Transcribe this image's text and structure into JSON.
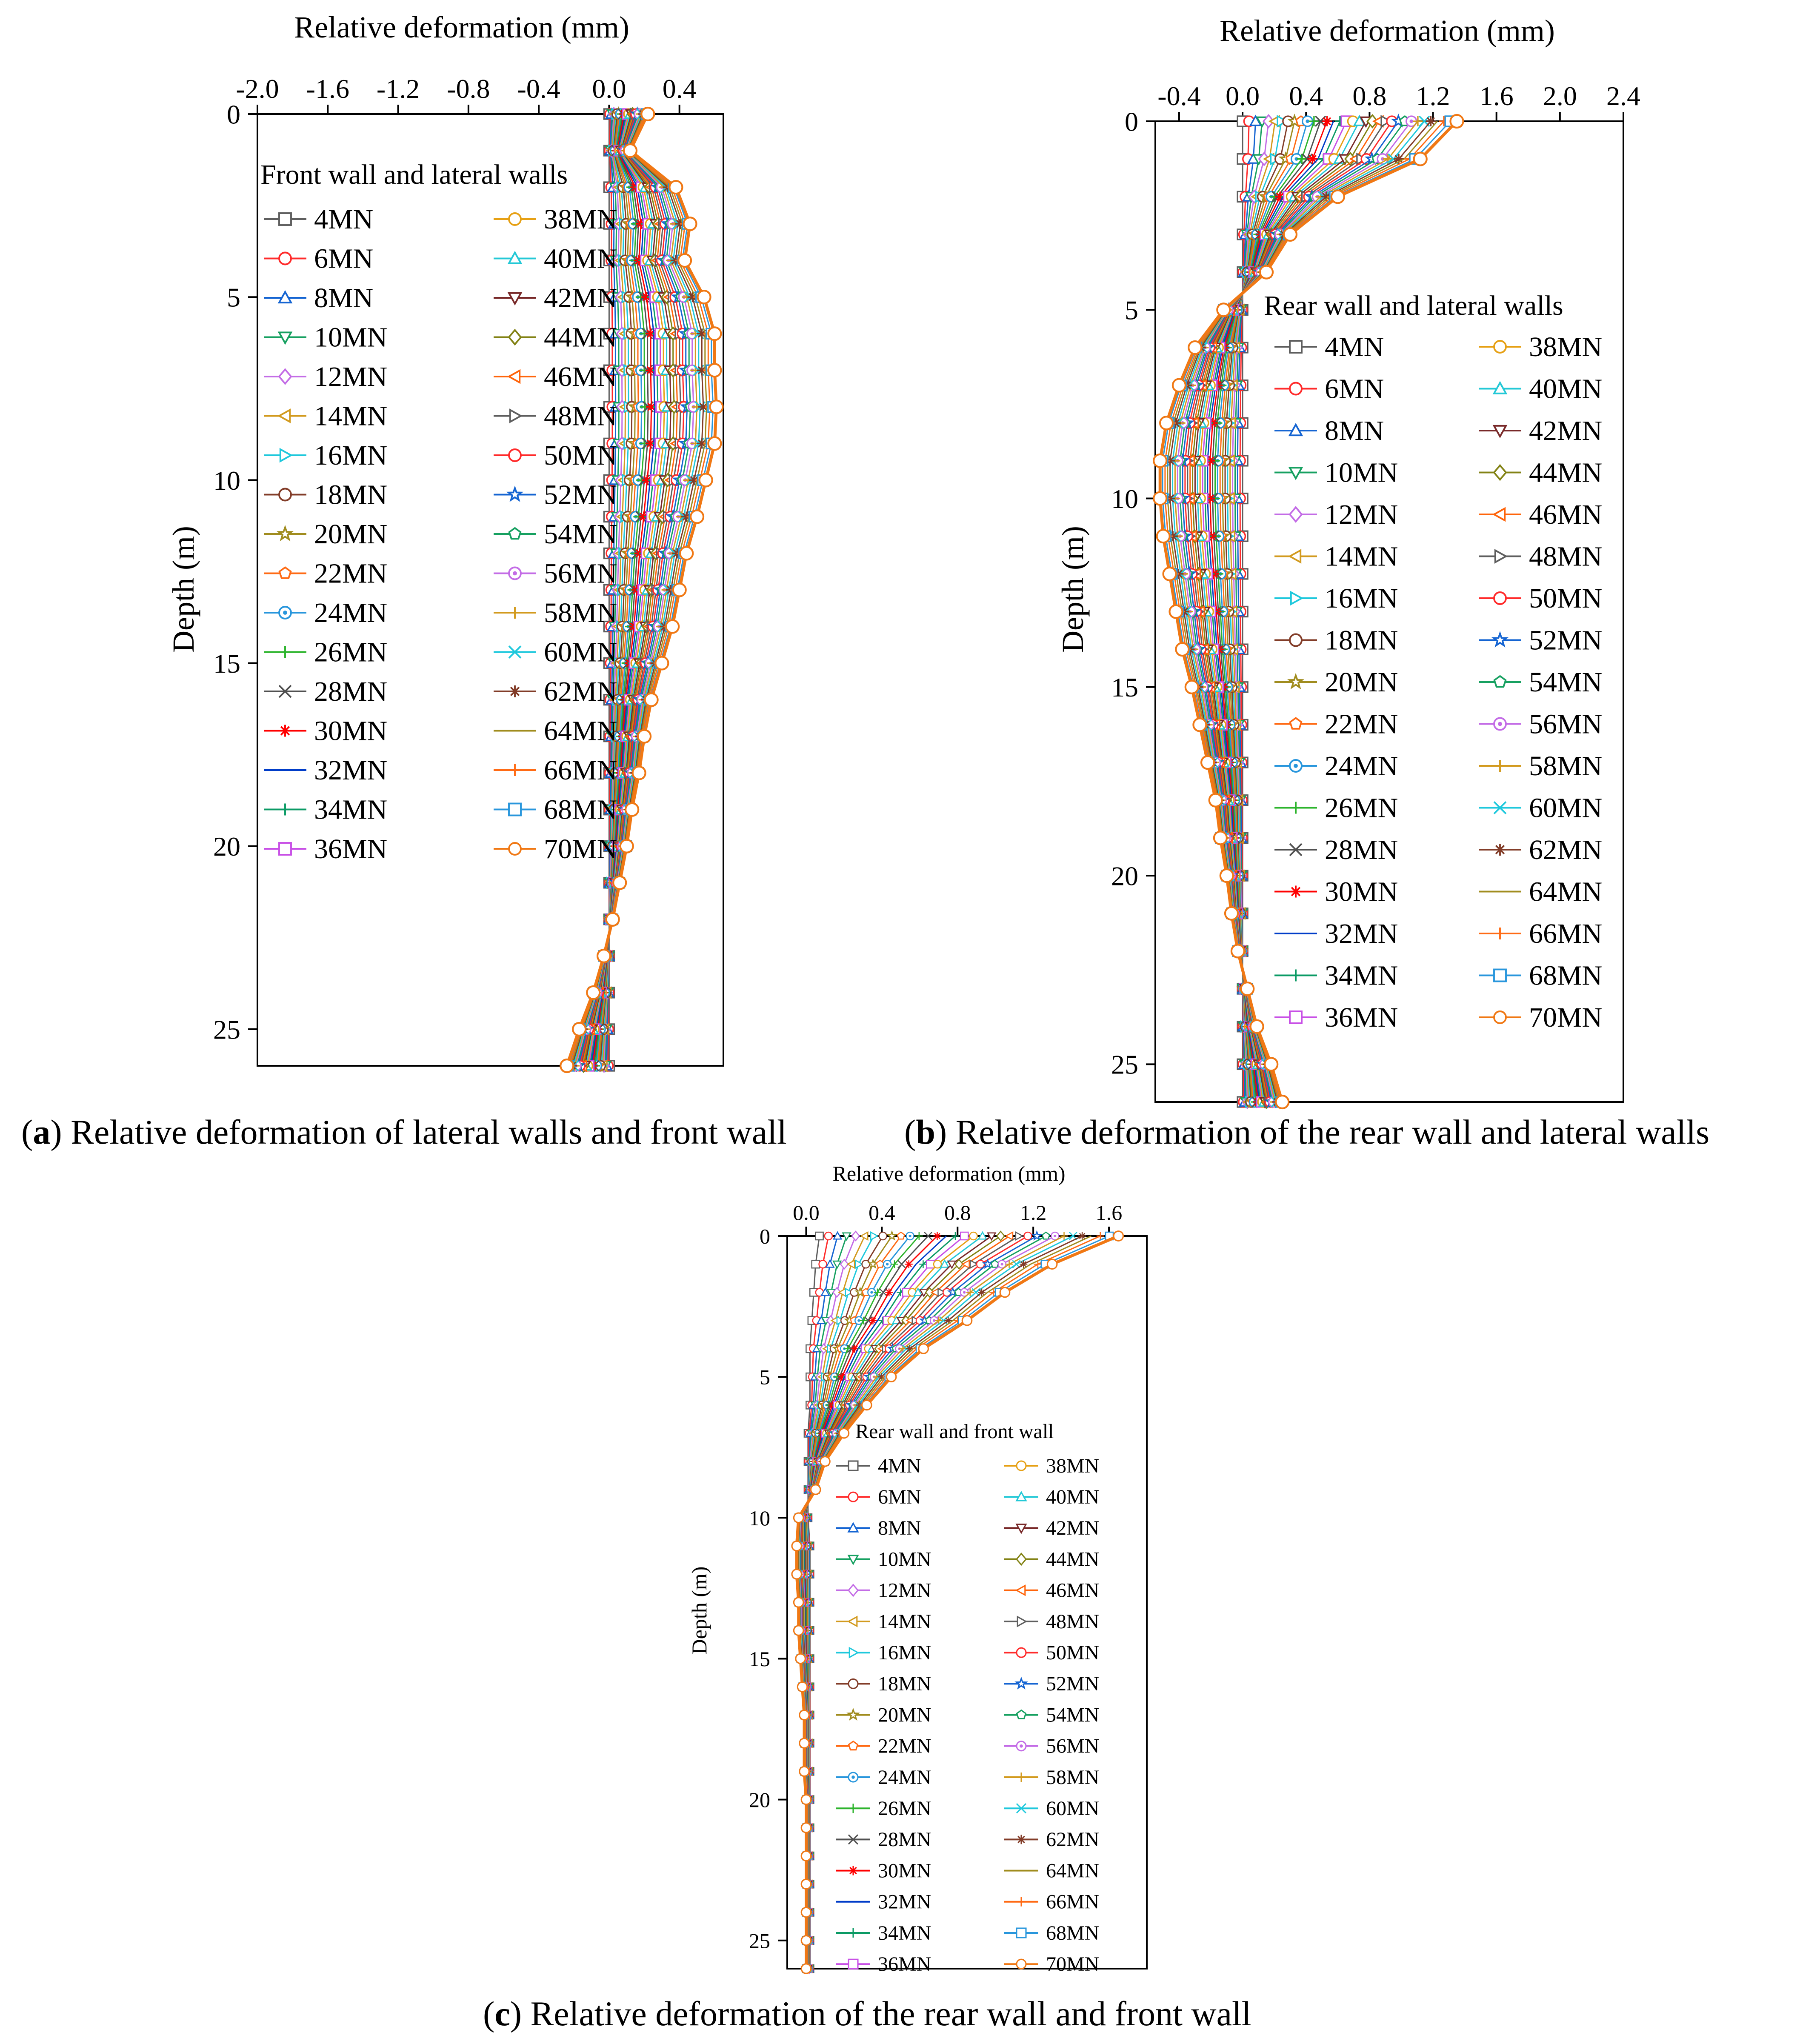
{
  "colors": {
    "series": [
      "#5e5e5e",
      "#ff2a2a",
      "#1464d2",
      "#16a060",
      "#c36ce6",
      "#d29a1e",
      "#1ec8dc",
      "#823c28",
      "#a08c1e",
      "#ff6a14",
      "#2896dc",
      "#2cb42c",
      "#505050",
      "#ff0000",
      "#003cc8",
      "#0a9a64",
      "#c850e6",
      "#e6a014",
      "#23c8d6",
      "#782828",
      "#828214",
      "#ff640a"
    ],
    "highlight": "#f07814",
    "frame": "#000000",
    "background": "#ffffff"
  },
  "series_names": [
    "4MN",
    "6MN",
    "8MN",
    "10MN",
    "12MN",
    "14MN",
    "16MN",
    "18MN",
    "20MN",
    "22MN",
    "24MN",
    "26MN",
    "28MN",
    "30MN",
    "32MN",
    "34MN",
    "36MN",
    "38MN",
    "40MN",
    "42MN",
    "44MN",
    "46MN",
    "48MN",
    "50MN",
    "52MN",
    "54MN",
    "56MN",
    "58MN",
    "60MN",
    "62MN",
    "64MN",
    "66MN",
    "68MN",
    "70MN"
  ],
  "chart_data": [
    {
      "id": "a",
      "type": "line",
      "title": "Relative deformation of lateral walls and front wall",
      "caption_letter": "a",
      "xlabel": "Relative deformation (mm)",
      "ylabel": "Depth (m)",
      "xlim": [
        -2.0,
        0.65
      ],
      "ylim": [
        0,
        26
      ],
      "xticks": [
        -2.0,
        -1.6,
        -1.2,
        -0.8,
        -0.4,
        0.0,
        0.4
      ],
      "xtick_labels": [
        "-2.0",
        "-1.6",
        "-1.2",
        "-0.8",
        "-0.4",
        "0.0",
        "0.4"
      ],
      "yticks": [
        0,
        5,
        10,
        15,
        20,
        25
      ],
      "ytick_labels": [
        "0",
        "5",
        "10",
        "15",
        "20",
        "25"
      ],
      "legend_title": "Front wall and lateral walls",
      "legend_position": "top-left",
      "depth": [
        0,
        1,
        2,
        3,
        4,
        5,
        6,
        7,
        8,
        9,
        10,
        11,
        12,
        13,
        14,
        15,
        16,
        17,
        18,
        19,
        20,
        21,
        22,
        23,
        24,
        25,
        26
      ],
      "series_first": [
        0.0,
        0.0,
        0.0,
        0.0,
        0.0,
        0.0,
        0.0,
        0.0,
        0.0,
        0.0,
        0.0,
        0.0,
        0.0,
        0.0,
        0.0,
        0.0,
        0.0,
        0.0,
        0.0,
        0.0,
        0.0,
        0.0,
        0.0,
        0.0,
        0.0,
        0.0,
        0.0
      ],
      "series_last": [
        0.22,
        0.12,
        0.38,
        0.46,
        0.43,
        0.54,
        0.6,
        0.6,
        0.61,
        0.6,
        0.55,
        0.5,
        0.44,
        0.4,
        0.36,
        0.3,
        0.24,
        0.2,
        0.17,
        0.13,
        0.1,
        0.06,
        0.02,
        -0.03,
        -0.09,
        -0.17,
        -0.24
      ]
    },
    {
      "id": "b",
      "type": "line",
      "title": "Relative deformation of the rear wall and lateral walls",
      "caption_letter": "b",
      "xlabel": "Relative deformation (mm)",
      "ylabel": "Depth (m)",
      "xlim": [
        -0.55,
        2.4
      ],
      "ylim": [
        0,
        26
      ],
      "xticks": [
        -0.4,
        0.0,
        0.4,
        0.8,
        1.2,
        1.6,
        2.0,
        2.4
      ],
      "xtick_labels": [
        "-0.4",
        "0.0",
        "0.4",
        "0.8",
        "1.2",
        "1.6",
        "2.0",
        "2.4"
      ],
      "yticks": [
        0,
        5,
        10,
        15,
        20,
        25
      ],
      "ytick_labels": [
        "0",
        "5",
        "10",
        "15",
        "20",
        "25"
      ],
      "legend_title": "Rear wall and lateral walls",
      "legend_position": "right",
      "depth": [
        0,
        1,
        2,
        3,
        4,
        5,
        6,
        7,
        8,
        9,
        10,
        11,
        12,
        13,
        14,
        15,
        16,
        17,
        18,
        19,
        20,
        21,
        22,
        23,
        24,
        25,
        26
      ],
      "series_first": [
        0.0,
        0.0,
        0.0,
        0.0,
        0.0,
        0.0,
        0.0,
        0.0,
        0.0,
        0.0,
        0.0,
        0.0,
        0.0,
        0.0,
        0.0,
        0.0,
        0.0,
        0.0,
        0.0,
        0.0,
        0.0,
        0.0,
        0.0,
        0.0,
        0.0,
        0.0,
        0.0
      ],
      "series_last": [
        1.35,
        1.12,
        0.6,
        0.3,
        0.15,
        -0.12,
        -0.3,
        -0.4,
        -0.48,
        -0.52,
        -0.52,
        -0.5,
        -0.46,
        -0.42,
        -0.38,
        -0.32,
        -0.27,
        -0.22,
        -0.17,
        -0.14,
        -0.1,
        -0.07,
        -0.03,
        0.03,
        0.09,
        0.18,
        0.25
      ]
    },
    {
      "id": "c",
      "type": "line",
      "title": "Relative deformation of the rear wall and front wall",
      "caption_letter": "c",
      "xlabel": "Relative deformation (mm)",
      "ylabel": "Depth (m)",
      "xlim": [
        -0.1,
        1.8
      ],
      "ylim": [
        0,
        26
      ],
      "xticks": [
        0.0,
        0.4,
        0.8,
        1.2,
        1.6
      ],
      "xtick_labels": [
        "0.0",
        "0.4",
        "0.8",
        "1.2",
        "1.6"
      ],
      "yticks": [
        0,
        5,
        10,
        15,
        20,
        25
      ],
      "ytick_labels": [
        "0",
        "5",
        "10",
        "15",
        "20",
        "25"
      ],
      "legend_title": "Rear wall and front wall",
      "legend_position": "bottom-right",
      "depth": [
        0,
        1,
        2,
        3,
        4,
        5,
        6,
        7,
        8,
        9,
        10,
        11,
        12,
        13,
        14,
        15,
        16,
        17,
        18,
        19,
        20,
        21,
        22,
        23,
        24,
        25,
        26
      ],
      "series_first": [
        0.07,
        0.05,
        0.04,
        0.03,
        0.02,
        0.02,
        0.02,
        0.01,
        0.01,
        0.01,
        0.01,
        0.02,
        0.02,
        0.02,
        0.02,
        0.02,
        0.02,
        0.02,
        0.02,
        0.02,
        0.02,
        0.02,
        0.02,
        0.02,
        0.02,
        0.02,
        0.02
      ],
      "series_last": [
        1.65,
        1.3,
        1.05,
        0.85,
        0.62,
        0.45,
        0.32,
        0.2,
        0.1,
        0.05,
        -0.04,
        -0.05,
        -0.05,
        -0.04,
        -0.04,
        -0.03,
        -0.02,
        -0.01,
        -0.01,
        -0.01,
        0.0,
        0.0,
        0.0,
        0.0,
        0.0,
        0.0,
        0.0
      ]
    }
  ]
}
